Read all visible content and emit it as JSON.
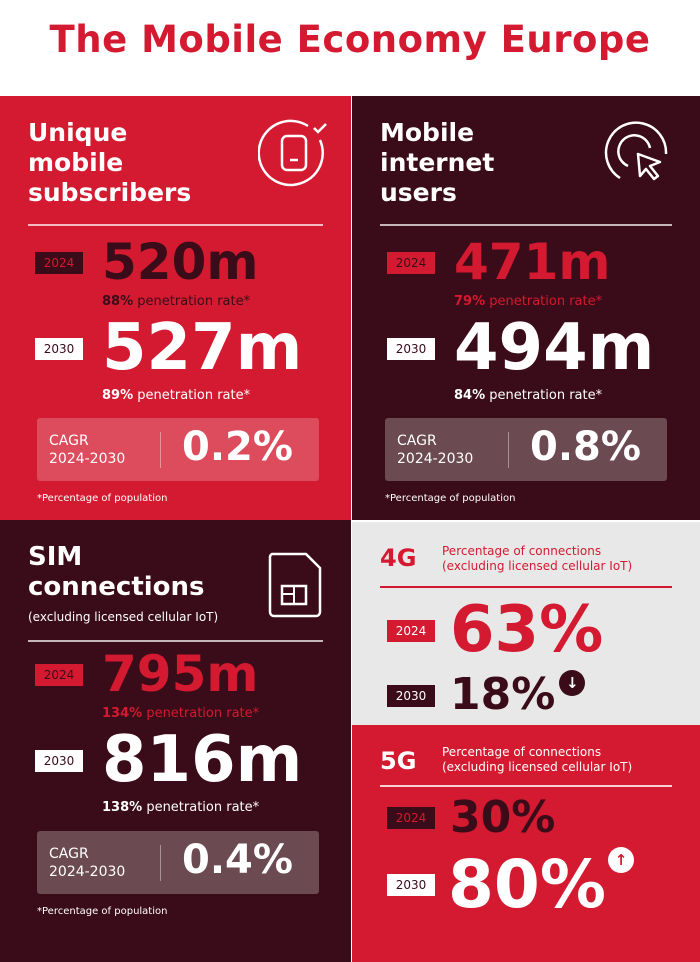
{
  "title": "The Mobile Economy Europe",
  "colors": {
    "red": "#d41a30",
    "dark": "#3a0b18",
    "gray": "#e8e8e8"
  },
  "unique": {
    "heading": [
      "Unique",
      "mobile",
      "subscribers"
    ],
    "icon": "phone-check-icon",
    "y2024": "2024",
    "v2024": "520m",
    "p2024": "88%",
    "y2030": "2030",
    "v2030": "527m",
    "p2030": "89%",
    "pen_label": "penetration rate*",
    "cagr_label": [
      "CAGR",
      "2024-2030"
    ],
    "cagr": "0.2%",
    "note": "*Percentage of population"
  },
  "internet": {
    "heading": [
      "Mobile",
      "internet",
      "users"
    ],
    "icon": "cursor-click-icon",
    "y2024": "2024",
    "v2024": "471m",
    "p2024": "79%",
    "y2030": "2030",
    "v2030": "494m",
    "p2030": "84%",
    "pen_label": "penetration rate*",
    "cagr_label": [
      "CAGR",
      "2024-2030"
    ],
    "cagr": "0.8%",
    "note": "*Percentage of population"
  },
  "sim": {
    "heading": [
      "SIM",
      "connections"
    ],
    "sub": "(excluding licensed cellular IoT)",
    "icon": "sim-card-icon",
    "y2024": "2024",
    "v2024": "795m",
    "p2024": "134%",
    "y2030": "2030",
    "v2030": "816m",
    "p2030": "138%",
    "pen_label": "penetration rate*",
    "cagr_label": [
      "CAGR",
      "2024-2030"
    ],
    "cagr": "0.4%",
    "note": "*Percentage of population"
  },
  "g4": {
    "heading": "4G",
    "sub": [
      "Percentage of connections",
      "(excluding licensed cellular IoT)"
    ],
    "y2024": "2024",
    "v2024": "63%",
    "y2030": "2030",
    "v2030": "18%",
    "trend": "down"
  },
  "g5": {
    "heading": "5G",
    "sub": [
      "Percentage of connections",
      "(excluding licensed cellular IoT)"
    ],
    "y2024": "2024",
    "v2024": "30%",
    "y2030": "2030",
    "v2030": "80%",
    "trend": "up"
  }
}
